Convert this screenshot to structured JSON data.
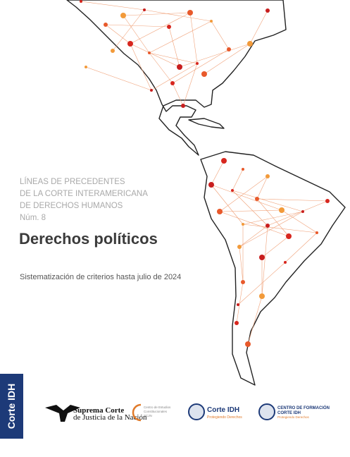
{
  "cover": {
    "series_lines": [
      "LÍNEAS DE PRECEDENTES",
      "DE LA CORTE INTERAMERICANA",
      "DE DERECHOS HUMANOS",
      "Núm. 8"
    ],
    "title": "Derechos políticos",
    "subtitle": "Sistematización de criterios hasta julio de 2024",
    "side_tab": "Corte IDH",
    "logos": {
      "scjn": [
        "Suprema Corte",
        "de Justicia de la Nación"
      ],
      "cec": [
        "Centro de Estudios",
        "Constitucionales",
        "SCJN"
      ],
      "corteidh": [
        "Corte IDH",
        "Protegiendo Derechos"
      ],
      "formacion": [
        "CENTRO DE FORMACIÓN",
        "CORTE IDH",
        "Protegiendo Derechos"
      ]
    }
  }
}
